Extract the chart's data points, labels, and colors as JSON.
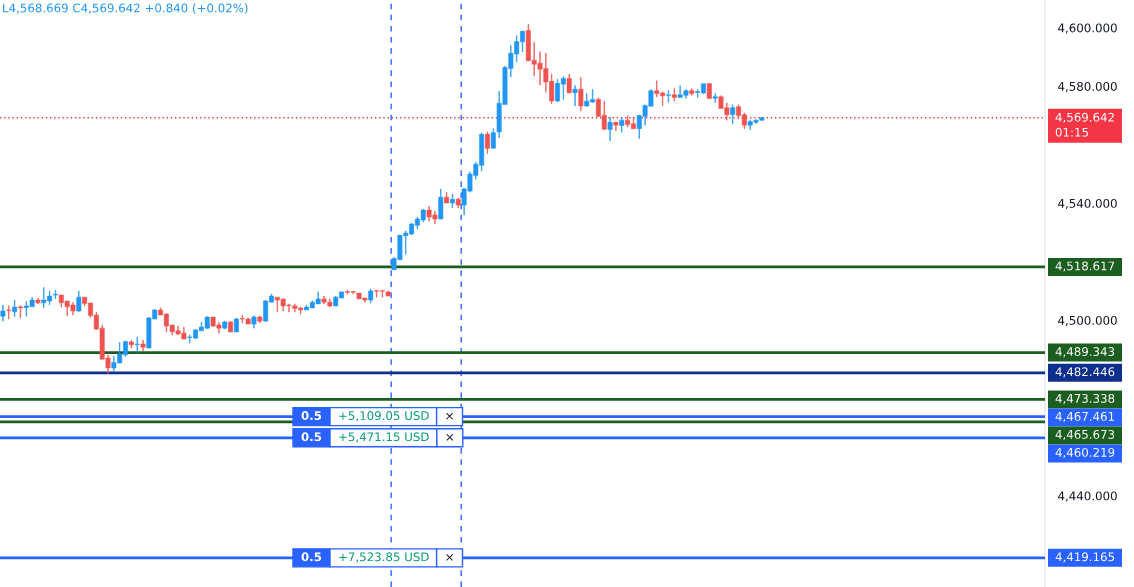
{
  "chart_data": {
    "type": "candlestick",
    "categories": [
      null,
      null,
      null,
      null,
      null,
      null,
      null,
      null,
      null,
      null,
      null,
      null,
      null,
      null,
      null,
      null,
      null,
      null,
      null,
      null,
      null,
      null,
      null,
      null,
      null,
      null,
      null,
      null,
      null,
      null,
      null,
      null,
      null,
      null,
      null,
      null,
      null,
      null,
      null,
      null,
      null,
      null,
      null,
      null,
      null,
      null,
      null,
      null,
      null,
      null,
      null,
      null,
      null,
      null,
      null,
      null,
      null,
      null,
      null,
      null,
      null,
      null,
      null,
      null,
      null,
      null,
      null,
      null,
      null,
      null,
      null,
      null,
      null,
      null,
      null,
      null,
      null,
      null,
      null,
      null,
      null,
      null,
      null,
      null,
      null,
      null,
      null,
      null,
      null,
      null,
      null,
      null,
      null,
      null,
      null,
      null,
      null,
      null,
      null,
      null,
      null,
      null,
      null,
      null,
      null,
      null,
      null,
      null,
      null,
      null,
      null,
      null,
      null,
      null,
      null,
      null,
      null,
      null,
      null,
      null,
      null,
      null,
      null,
      null,
      null,
      null,
      null,
      null,
      null,
      null,
      null,
      null,
      null,
      null,
      null,
      null,
      null,
      null,
      null,
      null,
      null,
      null,
      null,
      null,
      null,
      null,
      null,
      null,
      null,
      null,
      null,
      null,
      null,
      null,
      null,
      null,
      null,
      null,
      null,
      null,
      null,
      null,
      null,
      null,
      null,
      null,
      null,
      null,
      null,
      null,
      null,
      null,
      null,
      null,
      null,
      null,
      null,
      null,
      null
    ],
    "ohlc": [
      [
        4501.8,
        4505.6,
        4500.1,
        4503.6
      ],
      [
        4503.9,
        4505.4,
        4500.8,
        4503.7
      ],
      [
        4503.3,
        4507.3,
        4501.6,
        4504.9
      ],
      [
        4505.0,
        4505.4,
        4501.2,
        4504.7
      ],
      [
        4504.7,
        4506.8,
        4501.8,
        4505.3
      ],
      [
        4505.0,
        4508.2,
        4505.0,
        4507.3
      ],
      [
        4507.3,
        4507.9,
        4506.0,
        4506.4
      ],
      [
        4506.4,
        4511.6,
        4504.7,
        4507.3
      ],
      [
        4507.0,
        4510.4,
        4505.7,
        4508.7
      ],
      [
        4509.0,
        4510.7,
        4507.7,
        4509.3
      ],
      [
        4509.0,
        4509.0,
        4504.9,
        4506.4
      ],
      [
        4507.0,
        4507.0,
        4502.0,
        4505.0
      ],
      [
        4505.6,
        4506.5,
        4502.2,
        4503.6
      ],
      [
        4503.6,
        4510.4,
        4503.3,
        4508.3
      ],
      [
        4508.3,
        4508.3,
        4505.4,
        4506.1
      ],
      [
        4506.3,
        4506.3,
        4501.3,
        4502.0
      ],
      [
        4502.2,
        4503.2,
        4497.1,
        4497.4
      ],
      [
        4497.7,
        4498.8,
        4487.1,
        4487.1
      ],
      [
        4487.5,
        4488.5,
        4482.1,
        4484.1
      ],
      [
        4484.1,
        4488.1,
        4483.0,
        4486.0
      ],
      [
        4485.8,
        4492.9,
        4485.8,
        4488.9
      ],
      [
        4488.6,
        4493.3,
        4488.0,
        4493.1
      ],
      [
        4493.0,
        4493.6,
        4490.9,
        4492.0
      ],
      [
        4492.1,
        4494.7,
        4489.4,
        4492.3
      ],
      [
        4492.3,
        4493.6,
        4489.9,
        4491.2
      ],
      [
        4490.9,
        4501.4,
        4490.9,
        4501.2
      ],
      [
        4500.8,
        4504.2,
        4500.8,
        4503.9
      ],
      [
        4503.9,
        4504.7,
        4502.2,
        4502.2
      ],
      [
        4502.5,
        4502.8,
        4496.4,
        4498.4
      ],
      [
        4498.8,
        4498.8,
        4495.4,
        4496.5
      ],
      [
        4496.8,
        4498.4,
        4495.4,
        4495.7
      ],
      [
        4496.0,
        4498.0,
        4494.0,
        4494.0
      ],
      [
        4494.5,
        4495.4,
        4492.6,
        4494.7
      ],
      [
        4494.3,
        4497.4,
        4494.0,
        4497.1
      ],
      [
        4496.8,
        4499.8,
        4496.8,
        4498.1
      ],
      [
        4497.7,
        4501.7,
        4497.5,
        4501.5
      ],
      [
        4501.5,
        4501.5,
        4498.3,
        4498.4
      ],
      [
        4498.8,
        4499.7,
        4496.0,
        4497.7
      ],
      [
        4497.7,
        4500.1,
        4497.4,
        4499.8
      ],
      [
        4499.8,
        4500.1,
        4496.4,
        4496.4
      ],
      [
        4496.4,
        4501.2,
        4496.4,
        4500.8
      ],
      [
        4501.0,
        4502.0,
        4499.5,
        4500.8
      ],
      [
        4500.8,
        4501.2,
        4499.1,
        4499.1
      ],
      [
        4499.1,
        4501.9,
        4497.7,
        4501.5
      ],
      [
        4501.5,
        4501.9,
        4499.5,
        4500.1
      ],
      [
        4500.1,
        4507.3,
        4500.1,
        4507.0
      ],
      [
        4506.6,
        4509.4,
        4506.6,
        4508.7
      ],
      [
        4508.3,
        4508.3,
        4503.2,
        4507.3
      ],
      [
        4507.7,
        4507.7,
        4503.6,
        4505.3
      ],
      [
        4505.6,
        4506.0,
        4503.2,
        4505.4
      ],
      [
        4505.3,
        4506.0,
        4503.2,
        4504.4
      ],
      [
        4504.6,
        4504.9,
        4502.5,
        4504.0
      ],
      [
        4503.9,
        4505.6,
        4503.9,
        4504.9
      ],
      [
        4504.6,
        4507.0,
        4504.6,
        4506.6
      ],
      [
        4506.0,
        4510.1,
        4506.0,
        4507.7
      ],
      [
        4507.7,
        4508.7,
        4506.0,
        4506.6
      ],
      [
        4506.6,
        4507.7,
        4504.9,
        4505.3
      ],
      [
        4505.3,
        4508.7,
        4505.3,
        4508.3
      ],
      [
        4508.0,
        4510.1,
        4508.0,
        4510.1
      ],
      [
        4510.2,
        4510.7,
        4509.4,
        4510.0
      ],
      [
        4510.2,
        4510.4,
        4509.4,
        4510.0
      ],
      [
        4509.7,
        4509.7,
        4507.7,
        4507.7
      ],
      [
        4508.0,
        4508.0,
        4506.6,
        4507.3
      ],
      [
        4507.3,
        4511.1,
        4506.3,
        4510.4
      ],
      [
        4510.5,
        4510.7,
        4508.3,
        4510.3
      ],
      [
        4510.5,
        4510.7,
        4508.3,
        4510.3
      ],
      [
        4510.1,
        4510.4,
        4508.7,
        4508.7
      ],
      [
        4517.7,
        4521.9,
        4517.7,
        4521.5
      ],
      [
        4521.1,
        4529.5,
        4521.1,
        4529.5
      ],
      [
        4529.3,
        4530.9,
        4523.0,
        4530.2
      ],
      [
        4529.9,
        4533.6,
        4529.6,
        4533.3
      ],
      [
        4532.9,
        4535.7,
        4531.6,
        4535.0
      ],
      [
        4534.7,
        4538.4,
        4534.0,
        4538.1
      ],
      [
        4538.1,
        4539.4,
        4534.3,
        4535.7
      ],
      [
        4536.4,
        4537.7,
        4533.3,
        4535.0
      ],
      [
        4535.0,
        4545.3,
        4535.0,
        4542.5
      ],
      [
        4542.5,
        4544.2,
        4540.5,
        4540.5
      ],
      [
        4540.5,
        4543.6,
        4538.8,
        4541.8
      ],
      [
        4541.8,
        4542.2,
        4538.8,
        4539.8
      ],
      [
        4539.8,
        4545.6,
        4536.4,
        4545.3
      ],
      [
        4544.6,
        4551.1,
        4544.2,
        4550.4
      ],
      [
        4549.9,
        4554.5,
        4548.6,
        4553.7
      ],
      [
        4553.4,
        4564.5,
        4551.4,
        4564.0
      ],
      [
        4564.0,
        4564.8,
        4557.4,
        4559.2
      ],
      [
        4559.2,
        4565.9,
        4559.2,
        4564.5
      ],
      [
        4564.8,
        4578.7,
        4562.8,
        4574.6
      ],
      [
        4574.2,
        4587.3,
        4574.2,
        4586.8
      ],
      [
        4586.5,
        4594.4,
        4583.6,
        4591.7
      ],
      [
        4591.4,
        4597.8,
        4588.7,
        4595.7
      ],
      [
        4595.6,
        4599.3,
        4592.1,
        4599.2
      ],
      [
        4599.5,
        4601.6,
        4589.1,
        4589.1
      ],
      [
        4589.3,
        4595.5,
        4583.9,
        4587.9
      ],
      [
        4588.3,
        4592.2,
        4580.8,
        4586.2
      ],
      [
        4586.5,
        4591.7,
        4578.4,
        4581.9
      ],
      [
        4582.1,
        4584.5,
        4574.5,
        4575.4
      ],
      [
        4575.4,
        4582.8,
        4575.0,
        4581.4
      ],
      [
        4581.1,
        4583.7,
        4575.9,
        4583.1
      ],
      [
        4583.1,
        4584.5,
        4578.0,
        4578.2
      ],
      [
        4578.2,
        4580.7,
        4573.7,
        4579.4
      ],
      [
        4579.4,
        4583.4,
        4572.0,
        4573.7
      ],
      [
        4573.7,
        4578.0,
        4573.4,
        4575.3
      ],
      [
        4575.0,
        4579.4,
        4574.8,
        4575.9
      ],
      [
        4575.9,
        4576.5,
        4570.1,
        4570.1
      ],
      [
        4570.5,
        4575.2,
        4565.6,
        4565.7
      ],
      [
        4565.6,
        4569.9,
        4561.8,
        4568.1
      ],
      [
        4568.1,
        4568.2,
        4565.2,
        4567.1
      ],
      [
        4567.0,
        4569.8,
        4564.7,
        4568.8
      ],
      [
        4568.8,
        4570.4,
        4566.5,
        4567.3
      ],
      [
        4567.6,
        4569.7,
        4565.9,
        4565.9
      ],
      [
        4565.9,
        4570.6,
        4562.5,
        4570.4
      ],
      [
        4570.1,
        4574.1,
        4567.1,
        4573.8
      ],
      [
        4573.6,
        4579.3,
        4573.6,
        4578.9
      ],
      [
        4578.9,
        4582.3,
        4576.8,
        4577.9
      ],
      [
        4578.1,
        4578.5,
        4573.8,
        4577.2
      ],
      [
        4577.3,
        4579.0,
        4574.9,
        4577.5
      ],
      [
        4577.5,
        4579.6,
        4575.3,
        4576.6
      ],
      [
        4576.6,
        4580.6,
        4576.6,
        4577.5
      ],
      [
        4577.3,
        4579.3,
        4576.3,
        4578.9
      ],
      [
        4578.9,
        4579.6,
        4577.3,
        4577.9
      ],
      [
        4578.3,
        4579.3,
        4576.6,
        4578.6
      ],
      [
        4578.1,
        4581.3,
        4577.9,
        4581.3
      ],
      [
        4581.3,
        4581.5,
        4576.2,
        4576.2
      ],
      [
        4576.3,
        4577.9,
        4574.9,
        4576.8
      ],
      [
        4576.8,
        4577.2,
        4572.8,
        4572.8
      ],
      [
        4573.1,
        4574.7,
        4568.8,
        4570.7
      ],
      [
        4570.7,
        4574.1,
        4567.6,
        4573.1
      ],
      [
        4573.4,
        4574.1,
        4569.3,
        4570.4
      ],
      [
        4570.7,
        4571.3,
        4565.9,
        4567.1
      ],
      [
        4567.1,
        4568.8,
        4565.6,
        4568.4
      ],
      [
        4568.1,
        4569.0,
        4567.6,
        4568.8
      ],
      [
        4568.8,
        4569.9,
        4568.669,
        4569.642
      ],
      null,
      null,
      null,
      null,
      null,
      null,
      null,
      null,
      null,
      null,
      null,
      null,
      null,
      null,
      null,
      null,
      null,
      null,
      null,
      null,
      null,
      null,
      null,
      null,
      null,
      null,
      null,
      null,
      null,
      null,
      null,
      null,
      null,
      null,
      null,
      null,
      null,
      null,
      null,
      null,
      null,
      null,
      null,
      null,
      null,
      null,
      null,
      null
    ],
    "colors": [
      "#2196f3",
      "#ef5350",
      "#2196f3",
      "#ef5350",
      "#2196f3",
      "#2196f3",
      "#ef5350",
      "#2196f3",
      "#2196f3",
      "#2196f3",
      "#ef5350",
      "#ef5350",
      "#ef5350",
      "#2196f3",
      "#ef5350",
      "#ef5350",
      "#ef5350",
      "#ef5350",
      "#ef5350",
      "#2196f3",
      "#2196f3",
      "#2196f3",
      "#ef5350",
      "#2196f3",
      "#ef5350",
      "#2196f3",
      "#2196f3",
      "#ef5350",
      "#ef5350",
      "#ef5350",
      "#ef5350",
      "#ef5350",
      "#2196f3",
      "#2196f3",
      "#2196f3",
      "#2196f3",
      "#ef5350",
      "#ef5350",
      "#2196f3",
      "#ef5350",
      "#2196f3",
      "#ef5350",
      "#ef5350",
      "#2196f3",
      "#ef5350",
      "#2196f3",
      "#2196f3",
      "#ef5350",
      "#ef5350",
      "#ef5350",
      "#ef5350",
      "#ef5350",
      "#2196f3",
      "#2196f3",
      "#2196f3",
      "#ef5350",
      "#ef5350",
      "#2196f3",
      "#2196f3",
      "#ef5350",
      "#ef5350",
      "#ef5350",
      "#ef5350",
      "#2196f3",
      "#ef5350",
      "#ef5350",
      "#ef5350",
      "#2196f3",
      "#2196f3",
      "#2196f3",
      "#2196f3",
      "#2196f3",
      "#2196f3",
      "#ef5350",
      "#ef5350",
      "#2196f3",
      "#ef5350",
      "#2196f3",
      "#ef5350",
      "#2196f3",
      "#2196f3",
      "#2196f3",
      "#2196f3",
      "#ef5350",
      "#2196f3",
      "#2196f3",
      "#2196f3",
      "#2196f3",
      "#2196f3",
      "#2196f3",
      "#ef5350",
      "#ef5350",
      "#ef5350",
      "#ef5350",
      "#ef5350",
      "#2196f3",
      "#2196f3",
      "#ef5350",
      "#2196f3",
      "#ef5350",
      "#2196f3",
      "#2196f3",
      "#ef5350",
      "#ef5350",
      "#2196f3",
      "#ef5350",
      "#2196f3",
      "#ef5350",
      "#ef5350",
      "#2196f3",
      "#2196f3",
      "#2196f3",
      "#ef5350",
      "#ef5350",
      "#2196f3",
      "#ef5350",
      "#2196f3",
      "#2196f3",
      "#ef5350",
      "#2196f3",
      "#2196f3",
      "#ef5350",
      "#2196f3",
      "#ef5350",
      "#ef5350",
      "#2196f3",
      "#ef5350",
      "#ef5350",
      "#2196f3",
      "#2196f3",
      "#2196f3",
      null,
      null,
      null,
      null,
      null,
      null,
      null,
      null,
      null,
      null,
      null,
      null,
      null,
      null,
      null,
      null,
      null,
      null,
      null,
      null,
      null,
      null,
      null,
      null,
      null,
      null,
      null,
      null,
      null,
      null,
      null,
      null,
      null,
      null,
      null,
      null,
      null,
      null,
      null,
      null,
      null,
      null,
      null,
      null,
      null,
      null,
      null,
      null
    ],
    "ylim": [
      4409.2,
      4609.9
    ],
    "yticks": [
      {
        "value": 4440,
        "label": "4,440.000"
      },
      {
        "value": 4500,
        "label": "4,500.000"
      },
      {
        "value": 4540,
        "label": "4,540.000"
      },
      {
        "value": 4580,
        "label": "4,580.000"
      },
      {
        "value": 4600,
        "label": "4,600.000"
      }
    ],
    "tick_labels": "y",
    "ref_lines": [
      {
        "axis": "y",
        "value": 4569.642,
        "label": "4,569.642\n01:15",
        "color": "#f23645",
        "line_style": "dotted"
      },
      {
        "axis": "y",
        "value": 4518.617,
        "label": "4,518.617",
        "color": "#1b5e20",
        "line_style": "solid"
      },
      {
        "axis": "y",
        "value": 4489.343,
        "label": "4,489.343",
        "color": "#1b5e20",
        "line_style": "solid"
      },
      {
        "axis": "y",
        "value": 4482.446,
        "label": "4,482.446",
        "color": "#0d2f8f",
        "line_style": "solid"
      },
      {
        "axis": "y",
        "value": 4473.338,
        "label": "4,473.338",
        "color": "#1b5e20",
        "line_style": "solid"
      },
      {
        "axis": "y",
        "value": 4467.461,
        "label": "4,467.461",
        "color": "#2962ff",
        "line_style": "solid"
      },
      {
        "axis": "y",
        "value": 4465.673,
        "label": "4,465.673",
        "color": "#1b5e20",
        "line_style": "solid"
      },
      {
        "axis": "y",
        "value": 4460.219,
        "label": "4,460.219",
        "color": "#2962ff",
        "line_style": "solid"
      },
      {
        "axis": "y",
        "value": 4419.165,
        "label": "4,419.165",
        "color": "#2962ff",
        "line_style": "solid"
      }
    ],
    "annotations": [
      "L4,568.669 C4,569.642 +0.840 (+0.02%)",
      {
        "text": "0.5",
        "y": 4467.461
      },
      {
        "text": "+5,109.05 USD",
        "y": 4467.461
      },
      {
        "text": "×",
        "y": 4467.461
      },
      {
        "text": "0.5",
        "y": 4460.219
      },
      {
        "text": "+5,471.15 USD",
        "y": 4460.219
      },
      {
        "text": "×",
        "y": 4460.219
      },
      {
        "text": "0.5",
        "y": 4419.165
      },
      {
        "text": "+7,523.85 USD",
        "y": 4419.165
      },
      {
        "text": "×",
        "y": 4419.165
      }
    ]
  }
}
